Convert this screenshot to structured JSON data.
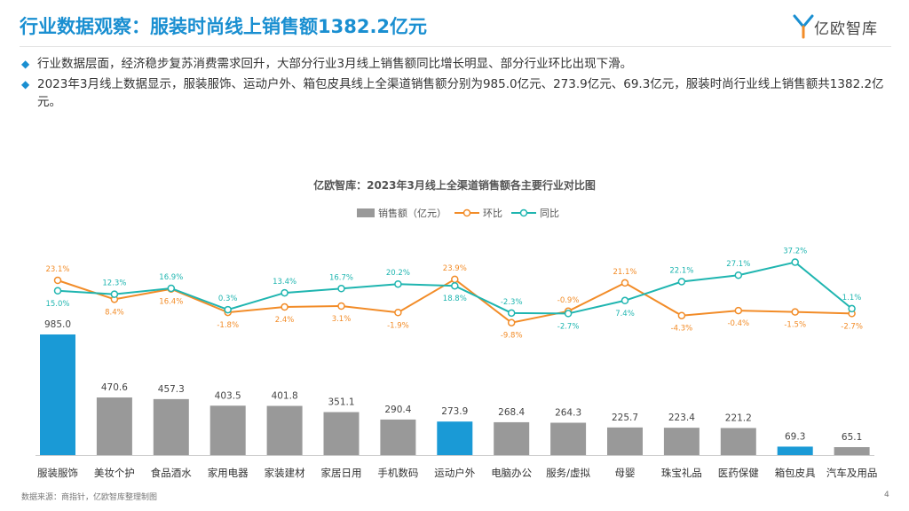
{
  "header": {
    "title": "行业数据观察：服装时尚线上销售额1382.2亿元"
  },
  "logo": {
    "text": "亿欧智库"
  },
  "bullets": [
    "行业数据层面，经济稳步复苏消费需求回升，大部分行业3月线上销售额同比增长明显、部分行业环比出现下滑。",
    "2023年3月线上数据显示，服装服饰、运动户外、箱包皮具线上全渠道销售额分别为985.0亿元、273.9亿元、69.3亿元，服装时尚行业线上销售额共1382.2亿元。"
  ],
  "footer": {
    "source": "数据来源：商指针，亿欧智库整理制图",
    "page": "4"
  },
  "colors": {
    "accent": "#1a8fd1",
    "bar_gray": "#999999",
    "bar_blue": "#1a9ad6",
    "mom": "#f28c28",
    "yoy": "#1fb5b0"
  },
  "chart_data": {
    "type": "bar",
    "title": "亿欧智库：2023年3月线上全渠道销售额各主要行业对比图",
    "legend": [
      "销售额（亿元）",
      "环比",
      "同比"
    ],
    "legend_position": "top-center",
    "categories": [
      "服装服饰",
      "美妆个护",
      "食品酒水",
      "家用电器",
      "家装建材",
      "家居日用",
      "手机数码",
      "运动户外",
      "电脑办公",
      "服务/虚拟",
      "母婴",
      "珠宝礼品",
      "医药保健",
      "箱包皮具",
      "汽车及用品"
    ],
    "highlight": [
      true,
      false,
      false,
      false,
      false,
      false,
      false,
      true,
      false,
      false,
      false,
      false,
      false,
      true,
      false
    ],
    "series": [
      {
        "name": "销售额（亿元）",
        "type": "bar",
        "values": [
          985.0,
          470.6,
          457.3,
          403.5,
          401.8,
          351.1,
          290.4,
          273.9,
          268.4,
          264.3,
          225.7,
          223.4,
          221.2,
          69.3,
          65.1
        ]
      },
      {
        "name": "环比",
        "type": "line",
        "values": [
          23.1,
          8.4,
          16.4,
          -1.8,
          2.4,
          3.1,
          -1.9,
          23.9,
          -9.8,
          -0.9,
          21.1,
          -4.3,
          -0.4,
          -1.5,
          -2.7
        ],
        "labels": [
          "23.1%",
          "8.4%",
          "16.4%",
          "-1.8%",
          "2.4%",
          "3.1%",
          "-1.9%",
          "23.9%",
          "-9.8%",
          "-0.9%",
          "21.1%",
          "-4.3%",
          "-0.4%",
          "-1.5%",
          "-2.7%"
        ]
      },
      {
        "name": "同比",
        "type": "line",
        "values": [
          15.0,
          12.3,
          16.9,
          0.3,
          13.4,
          16.7,
          20.2,
          18.8,
          -2.3,
          -2.7,
          7.4,
          22.1,
          27.1,
          37.2,
          1.1
        ],
        "labels": [
          "15.0%",
          "12.3%",
          "16.9%",
          "0.3%",
          "13.4%",
          "16.7%",
          "20.2%",
          "18.8%",
          "-2.3%",
          "-2.7%",
          "7.4%",
          "22.1%",
          "27.1%",
          "37.2%",
          "1.1%"
        ]
      }
    ],
    "bar_labels": [
      "985.0",
      "470.6",
      "457.3",
      "403.5",
      "401.8",
      "351.1",
      "290.4",
      "273.9",
      "268.4",
      "264.3",
      "225.7",
      "223.4",
      "221.2",
      "69.3",
      "65.1"
    ]
  }
}
